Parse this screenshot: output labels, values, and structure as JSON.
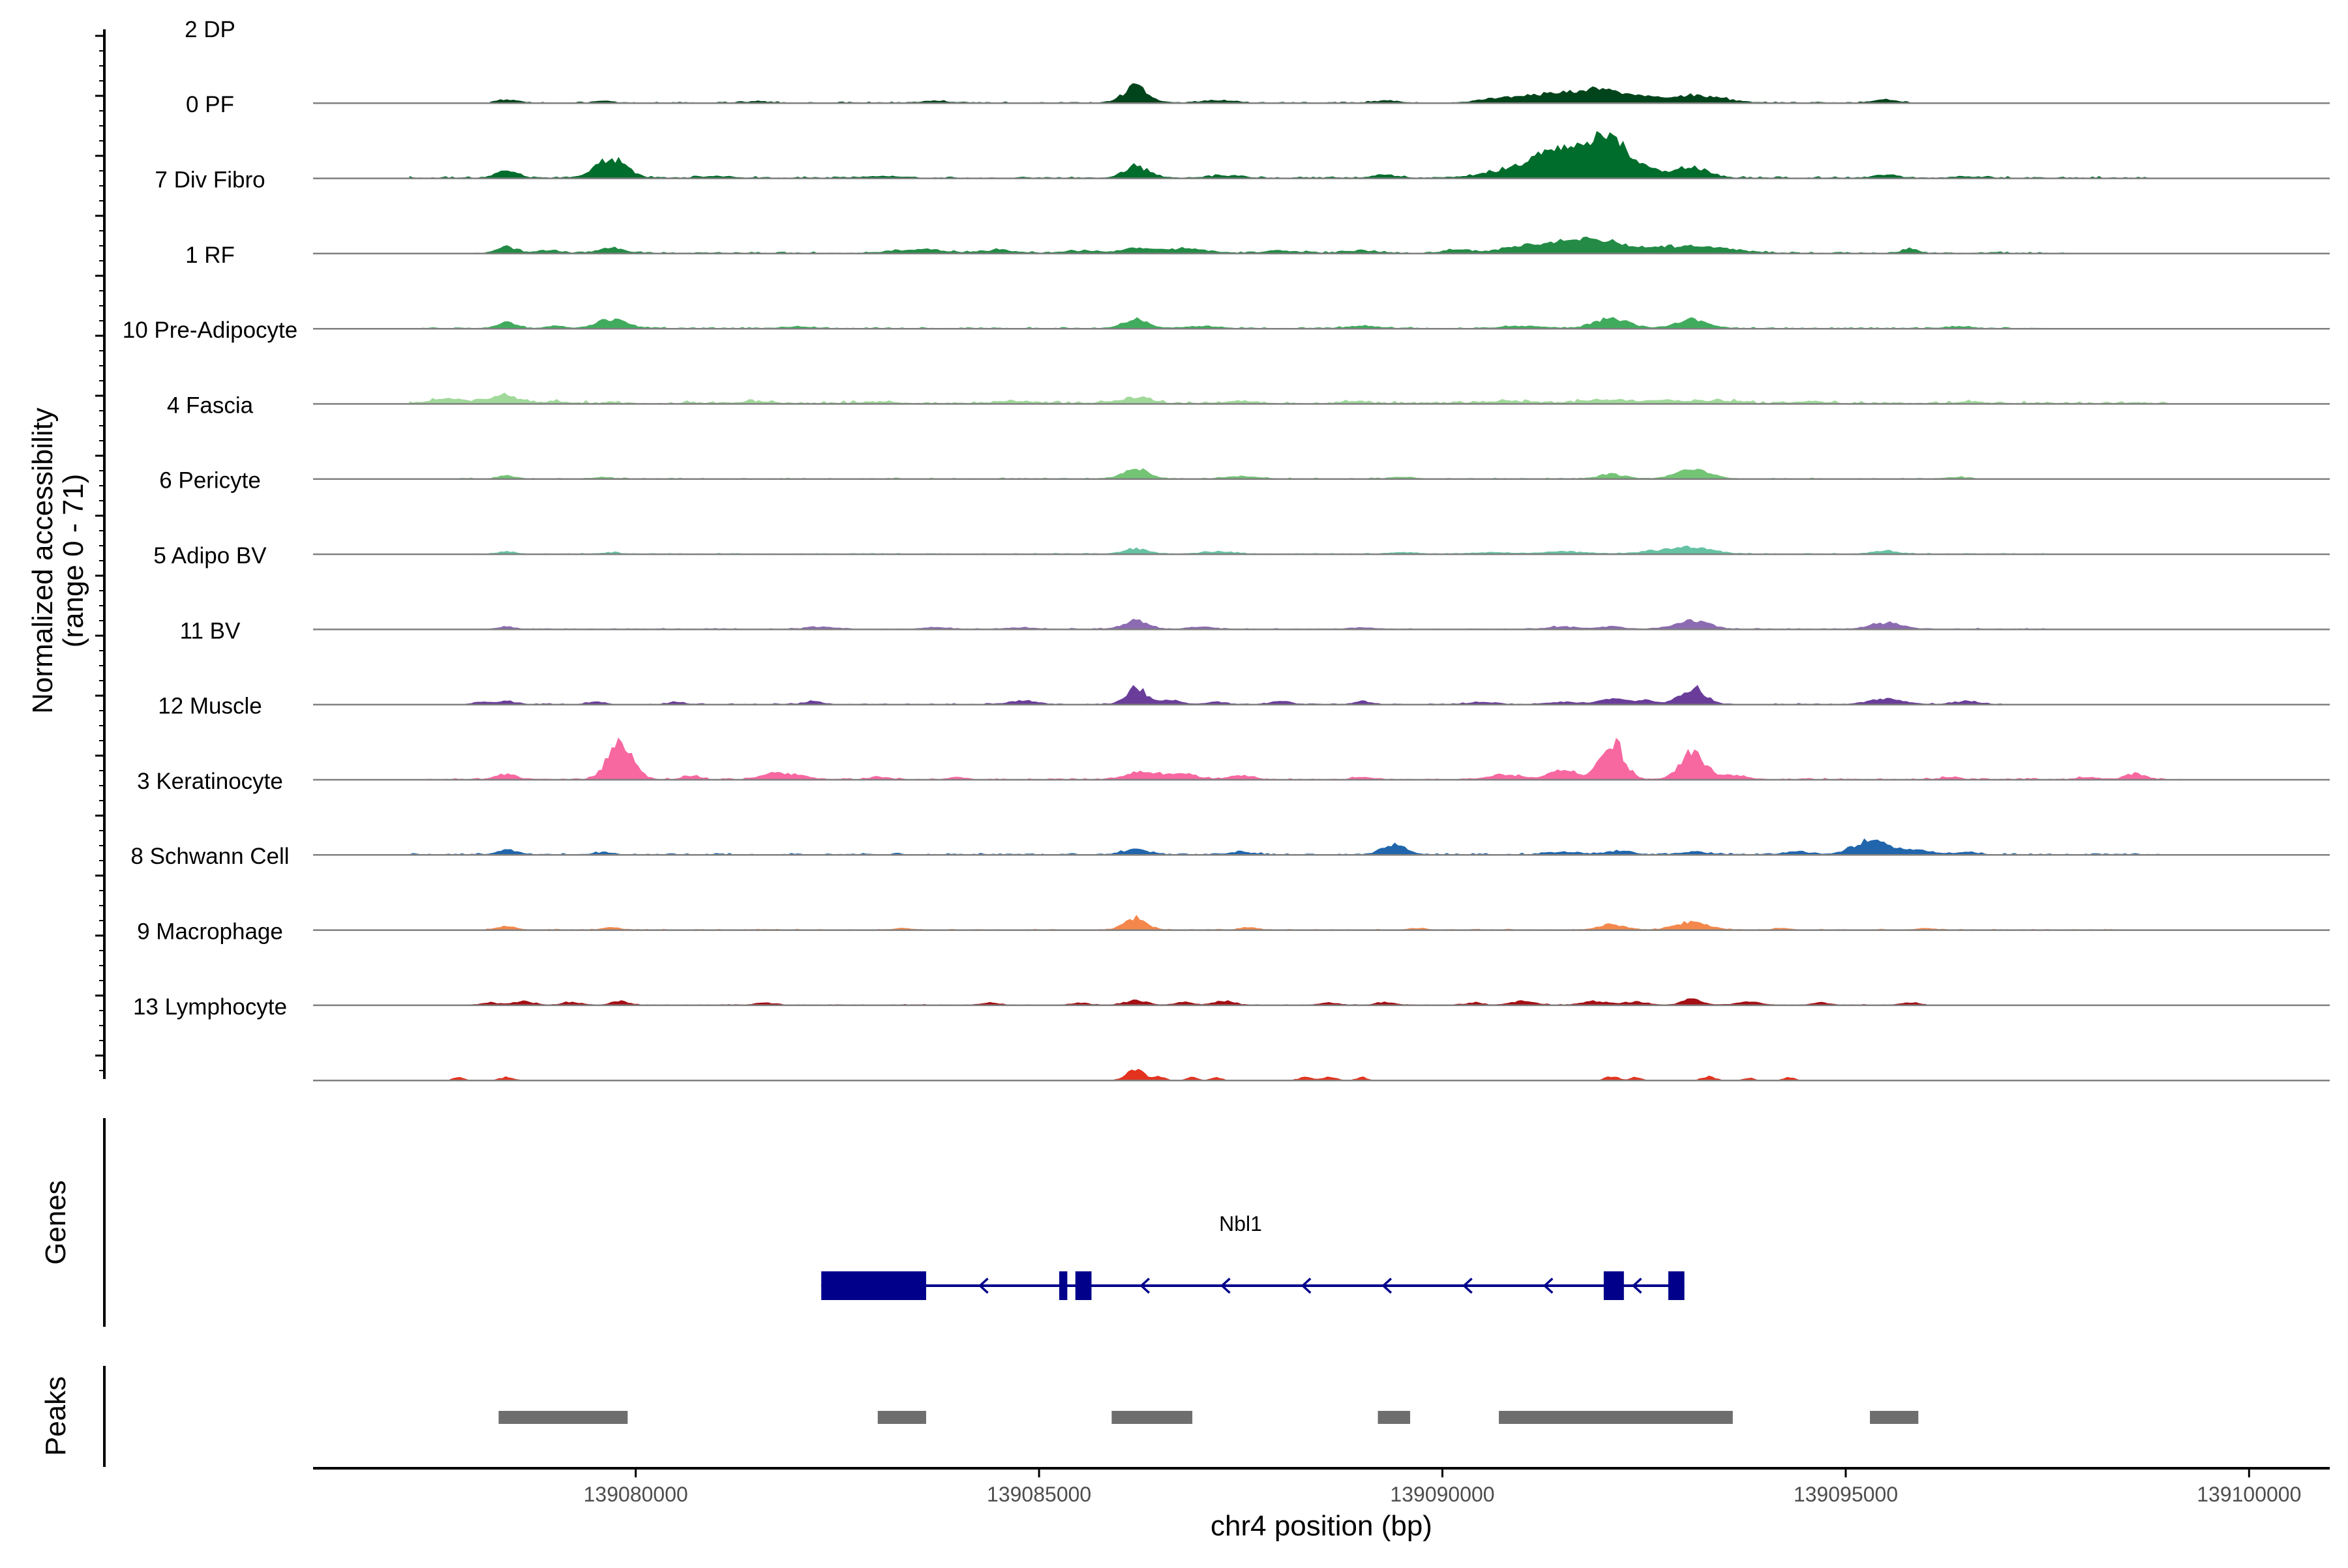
{
  "chart_data": {
    "type": "area",
    "title": "",
    "xlabel": "chr4 position (bp)",
    "ylabel_line1": "Normalized accessibility",
    "ylabel_line2": "(range 0 - 71)",
    "ylim": [
      0,
      71
    ],
    "xlim": [
      139076000,
      139101000
    ],
    "xticks": [
      139080000,
      139085000,
      139090000,
      139095000,
      139100000
    ],
    "xtick_labels": [
      "139080000",
      "139085000",
      "139090000",
      "139095000",
      "139100000"
    ],
    "panel_labels": {
      "genes": "Genes",
      "peaks": "Peaks"
    },
    "tracks": [
      {
        "name": "2 DP",
        "color": "#00441b",
        "start": 139078200,
        "end": 139095800,
        "noise": 0.6,
        "peaks": [
          [
            139078400,
            4.5,
            120
          ],
          [
            139079600,
            2.5,
            100
          ],
          [
            139081500,
            1.5,
            150
          ],
          [
            139083700,
            2,
            200
          ],
          [
            139086200,
            22,
            150
          ],
          [
            139087200,
            3,
            200
          ],
          [
            139089300,
            3,
            150
          ],
          [
            139090700,
            4,
            250
          ],
          [
            139091200,
            8,
            300
          ],
          [
            139091700,
            10,
            300
          ],
          [
            139092100,
            12,
            300
          ],
          [
            139092600,
            5,
            200
          ],
          [
            139093100,
            9,
            200
          ],
          [
            139093500,
            4,
            200
          ],
          [
            139095500,
            4,
            150
          ]
        ]
      },
      {
        "name": "0 PF",
        "color": "#006d2c",
        "start": 139077200,
        "end": 139098900,
        "noise": 0.9,
        "peaks": [
          [
            139078400,
            10,
            130
          ],
          [
            139079700,
            26,
            180
          ],
          [
            139081000,
            2,
            200
          ],
          [
            139083000,
            2,
            200
          ],
          [
            139086200,
            15,
            150
          ],
          [
            139087300,
            3,
            200
          ],
          [
            139089300,
            4,
            150
          ],
          [
            139090800,
            8,
            300
          ],
          [
            139091300,
            22,
            300
          ],
          [
            139091700,
            24,
            300
          ],
          [
            139092100,
            40,
            250
          ],
          [
            139092600,
            6,
            200
          ],
          [
            139093100,
            14,
            200
          ],
          [
            139095500,
            4,
            150
          ],
          [
            139096500,
            2,
            150
          ]
        ]
      },
      {
        "name": "7 Div Fibro",
        "color": "#238b45",
        "start": 139078000,
        "end": 139097800,
        "noise": 0.9,
        "peaks": [
          [
            139078400,
            8,
            120
          ],
          [
            139078900,
            4,
            150
          ],
          [
            139079700,
            7,
            150
          ],
          [
            139083500,
            5,
            300
          ],
          [
            139084500,
            4,
            200
          ],
          [
            139085500,
            3,
            200
          ],
          [
            139086200,
            6,
            200
          ],
          [
            139086800,
            5,
            300
          ],
          [
            139088000,
            3,
            200
          ],
          [
            139089000,
            3,
            200
          ],
          [
            139090200,
            5,
            150
          ],
          [
            139091000,
            8,
            300
          ],
          [
            139091600,
            13,
            300
          ],
          [
            139092000,
            11,
            300
          ],
          [
            139092800,
            8,
            300
          ],
          [
            139093400,
            6,
            300
          ],
          [
            139095800,
            5,
            100
          ]
        ]
      },
      {
        "name": "1 RF",
        "color": "#41ab5d",
        "start": 139077200,
        "end": 139097500,
        "noise": 0.7,
        "peaks": [
          [
            139078400,
            8,
            120
          ],
          [
            139079000,
            3,
            100
          ],
          [
            139079700,
            12,
            180
          ],
          [
            139082000,
            2,
            200
          ],
          [
            139086200,
            12,
            150
          ],
          [
            139087000,
            3,
            200
          ],
          [
            139089000,
            3,
            200
          ],
          [
            139091000,
            3,
            250
          ],
          [
            139092100,
            13,
            200
          ],
          [
            139093100,
            11,
            200
          ],
          [
            139096400,
            2,
            150
          ]
        ]
      },
      {
        "name": "10 Pre-Adipocyte",
        "color": "#a1d99b",
        "start": 139077200,
        "end": 139099000,
        "noise": 1.4,
        "peaks": [
          [
            139077600,
            4,
            200
          ],
          [
            139078100,
            4,
            250
          ],
          [
            139078400,
            10,
            130
          ],
          [
            139079000,
            3,
            150
          ],
          [
            139081500,
            3,
            200
          ],
          [
            139083000,
            2,
            200
          ],
          [
            139084700,
            3,
            250
          ],
          [
            139086200,
            8,
            180
          ],
          [
            139087500,
            3,
            200
          ],
          [
            139088900,
            3,
            150
          ],
          [
            139090800,
            3,
            300
          ],
          [
            139092000,
            4,
            300
          ],
          [
            139092800,
            4,
            300
          ],
          [
            139093500,
            3,
            200
          ],
          [
            139094500,
            2,
            150
          ],
          [
            139096500,
            2,
            150
          ]
        ]
      },
      {
        "name": "4 Fascia",
        "color": "#74c476",
        "start": 139077800,
        "end": 139096600,
        "noise": 0.5,
        "peaks": [
          [
            139078400,
            4,
            100
          ],
          [
            139079600,
            2,
            100
          ],
          [
            139086200,
            13,
            150
          ],
          [
            139087500,
            3,
            200
          ],
          [
            139089500,
            2,
            150
          ],
          [
            139092100,
            6,
            150
          ],
          [
            139093100,
            12,
            200
          ],
          [
            139096400,
            2,
            150
          ]
        ]
      },
      {
        "name": "6 Pericyte",
        "color": "#66c2a4",
        "start": 139078000,
        "end": 139097500,
        "noise": 0.4,
        "peaks": [
          [
            139078400,
            3,
            100
          ],
          [
            139079700,
            2,
            100
          ],
          [
            139086200,
            7,
            150
          ],
          [
            139087200,
            3,
            200
          ],
          [
            139089500,
            2,
            150
          ],
          [
            139090600,
            2,
            200
          ],
          [
            139091500,
            3,
            300
          ],
          [
            139092600,
            3,
            200
          ],
          [
            139093100,
            9,
            250
          ],
          [
            139095500,
            4,
            150
          ]
        ]
      },
      {
        "name": "5 Adipo BV",
        "color": "#8c6bb1",
        "start": 139078000,
        "end": 139097500,
        "noise": 0.5,
        "peaks": [
          [
            139078400,
            3,
            100
          ],
          [
            139082300,
            3,
            150
          ],
          [
            139083700,
            2,
            150
          ],
          [
            139084800,
            2,
            150
          ],
          [
            139086200,
            11,
            150
          ],
          [
            139087000,
            3,
            150
          ],
          [
            139089000,
            2,
            150
          ],
          [
            139091500,
            3,
            200
          ],
          [
            139092100,
            3,
            150
          ],
          [
            139093100,
            11,
            200
          ],
          [
            139095500,
            8,
            200
          ]
        ]
      },
      {
        "name": "11 BV",
        "color": "#6a3d9a",
        "start": 139077800,
        "end": 139097000,
        "noise": 0.5,
        "peaks": [
          [
            139078100,
            3,
            100
          ],
          [
            139078400,
            4,
            100
          ],
          [
            139079500,
            3,
            100
          ],
          [
            139080500,
            3,
            100
          ],
          [
            139082200,
            4,
            100
          ],
          [
            139084800,
            5,
            150
          ],
          [
            139086200,
            22,
            120
          ],
          [
            139086600,
            5,
            150
          ],
          [
            139087200,
            3,
            100
          ],
          [
            139088000,
            4,
            120
          ],
          [
            139089000,
            4,
            100
          ],
          [
            139090500,
            3,
            150
          ],
          [
            139091500,
            3,
            200
          ],
          [
            139092100,
            7,
            150
          ],
          [
            139092500,
            5,
            150
          ],
          [
            139093100,
            22,
            150
          ],
          [
            139095500,
            8,
            200
          ],
          [
            139096500,
            4,
            150
          ],
          [
            139098600,
            3,
            100
          ]
        ]
      },
      {
        "name": "12 Muscle",
        "color": "#f768a1",
        "start": 139077400,
        "end": 139099200,
        "noise": 0.8,
        "peaks": [
          [
            139078400,
            7,
            120
          ],
          [
            139079800,
            46,
            150
          ],
          [
            139080700,
            5,
            100
          ],
          [
            139081700,
            8,
            150
          ],
          [
            139082000,
            5,
            150
          ],
          [
            139083000,
            3,
            100
          ],
          [
            139084000,
            3,
            100
          ],
          [
            139086300,
            10,
            200
          ],
          [
            139086800,
            7,
            150
          ],
          [
            139087500,
            5,
            150
          ],
          [
            139089000,
            3,
            100
          ],
          [
            139090800,
            6,
            200
          ],
          [
            139091500,
            14,
            150
          ],
          [
            139092100,
            52,
            140
          ],
          [
            139093100,
            38,
            150
          ],
          [
            139093600,
            6,
            150
          ],
          [
            139096300,
            3,
            100
          ],
          [
            139098000,
            3,
            100
          ],
          [
            139098600,
            8,
            120
          ]
        ]
      },
      {
        "name": "3 Keratinocyte",
        "color": "#2166ac",
        "start": 139077200,
        "end": 139099000,
        "noise": 0.8,
        "peaks": [
          [
            139078400,
            6,
            120
          ],
          [
            139079600,
            3,
            100
          ],
          [
            139086200,
            7,
            150
          ],
          [
            139087500,
            3,
            150
          ],
          [
            139089400,
            12,
            150
          ],
          [
            139091500,
            3,
            200
          ],
          [
            139092200,
            5,
            150
          ],
          [
            139093100,
            4,
            150
          ],
          [
            139094400,
            4,
            150
          ],
          [
            139095300,
            18,
            200
          ],
          [
            139095800,
            6,
            250
          ],
          [
            139096500,
            3,
            150
          ]
        ]
      },
      {
        "name": "8 Schwann Cell",
        "color": "#f4874b",
        "start": 139078000,
        "end": 139098500,
        "noise": 0.4,
        "peaks": [
          [
            139078400,
            5,
            100
          ],
          [
            139079700,
            3,
            100
          ],
          [
            139083300,
            2,
            100
          ],
          [
            139086200,
            16,
            130
          ],
          [
            139087600,
            3,
            100
          ],
          [
            139089700,
            2,
            100
          ],
          [
            139092100,
            7,
            150
          ],
          [
            139093100,
            10,
            200
          ],
          [
            139094200,
            2,
            100
          ],
          [
            139096000,
            2,
            100
          ]
        ]
      },
      {
        "name": "9 Macrophage",
        "color": "#a50f15",
        "start": 139077800,
        "end": 139096000,
        "noise": 0.4,
        "peaks": [
          [
            139078200,
            3,
            100
          ],
          [
            139078600,
            5,
            120
          ],
          [
            139079200,
            4,
            100
          ],
          [
            139079800,
            5,
            100
          ],
          [
            139081600,
            3,
            100
          ],
          [
            139084400,
            3,
            100
          ],
          [
            139085500,
            3,
            100
          ],
          [
            139086200,
            6,
            130
          ],
          [
            139086800,
            4,
            100
          ],
          [
            139087300,
            5,
            120
          ],
          [
            139088600,
            3,
            100
          ],
          [
            139089300,
            4,
            100
          ],
          [
            139090400,
            3,
            100
          ],
          [
            139091000,
            5,
            150
          ],
          [
            139091900,
            5,
            150
          ],
          [
            139092400,
            4,
            150
          ],
          [
            139093100,
            8,
            120
          ],
          [
            139093800,
            4,
            150
          ],
          [
            139094700,
            3,
            100
          ],
          [
            139095800,
            3,
            100
          ]
        ]
      },
      {
        "name": "13 Lymphocyte",
        "color": "#e3331f",
        "start": 139077700,
        "end": 139094500,
        "noise": 0.0,
        "peaks": [
          [
            139077800,
            4,
            60
          ],
          [
            139078400,
            4,
            80
          ],
          [
            139086200,
            14,
            110
          ],
          [
            139086500,
            5,
            60
          ],
          [
            139086900,
            4,
            60
          ],
          [
            139087200,
            4,
            60
          ],
          [
            139088300,
            4,
            80
          ],
          [
            139088600,
            5,
            80
          ],
          [
            139089000,
            4,
            60
          ],
          [
            139092100,
            5,
            80
          ],
          [
            139092400,
            4,
            60
          ],
          [
            139093300,
            5,
            80
          ],
          [
            139093800,
            3,
            60
          ],
          [
            139094300,
            4,
            60
          ]
        ]
      }
    ],
    "gene": {
      "name": "Nbl1",
      "color": "#00008b",
      "start": 139082300,
      "end": 139093000,
      "strand": "-",
      "exons": [
        [
          139082300,
          139083600
        ],
        [
          139085250,
          139085350
        ],
        [
          139085450,
          139085650
        ],
        [
          139092000,
          139092250
        ],
        [
          139092800,
          139093000
        ]
      ],
      "arrows": [
        139084300,
        139086300,
        139087300,
        139088300,
        139089300,
        139090300,
        139091300,
        139092400
      ]
    },
    "peaks": [
      [
        139078300,
        139079900
      ],
      [
        139083000,
        139083600
      ],
      [
        139085900,
        139086900
      ],
      [
        139089200,
        139089600
      ],
      [
        139090700,
        139093600
      ],
      [
        139095300,
        139095900
      ]
    ]
  }
}
